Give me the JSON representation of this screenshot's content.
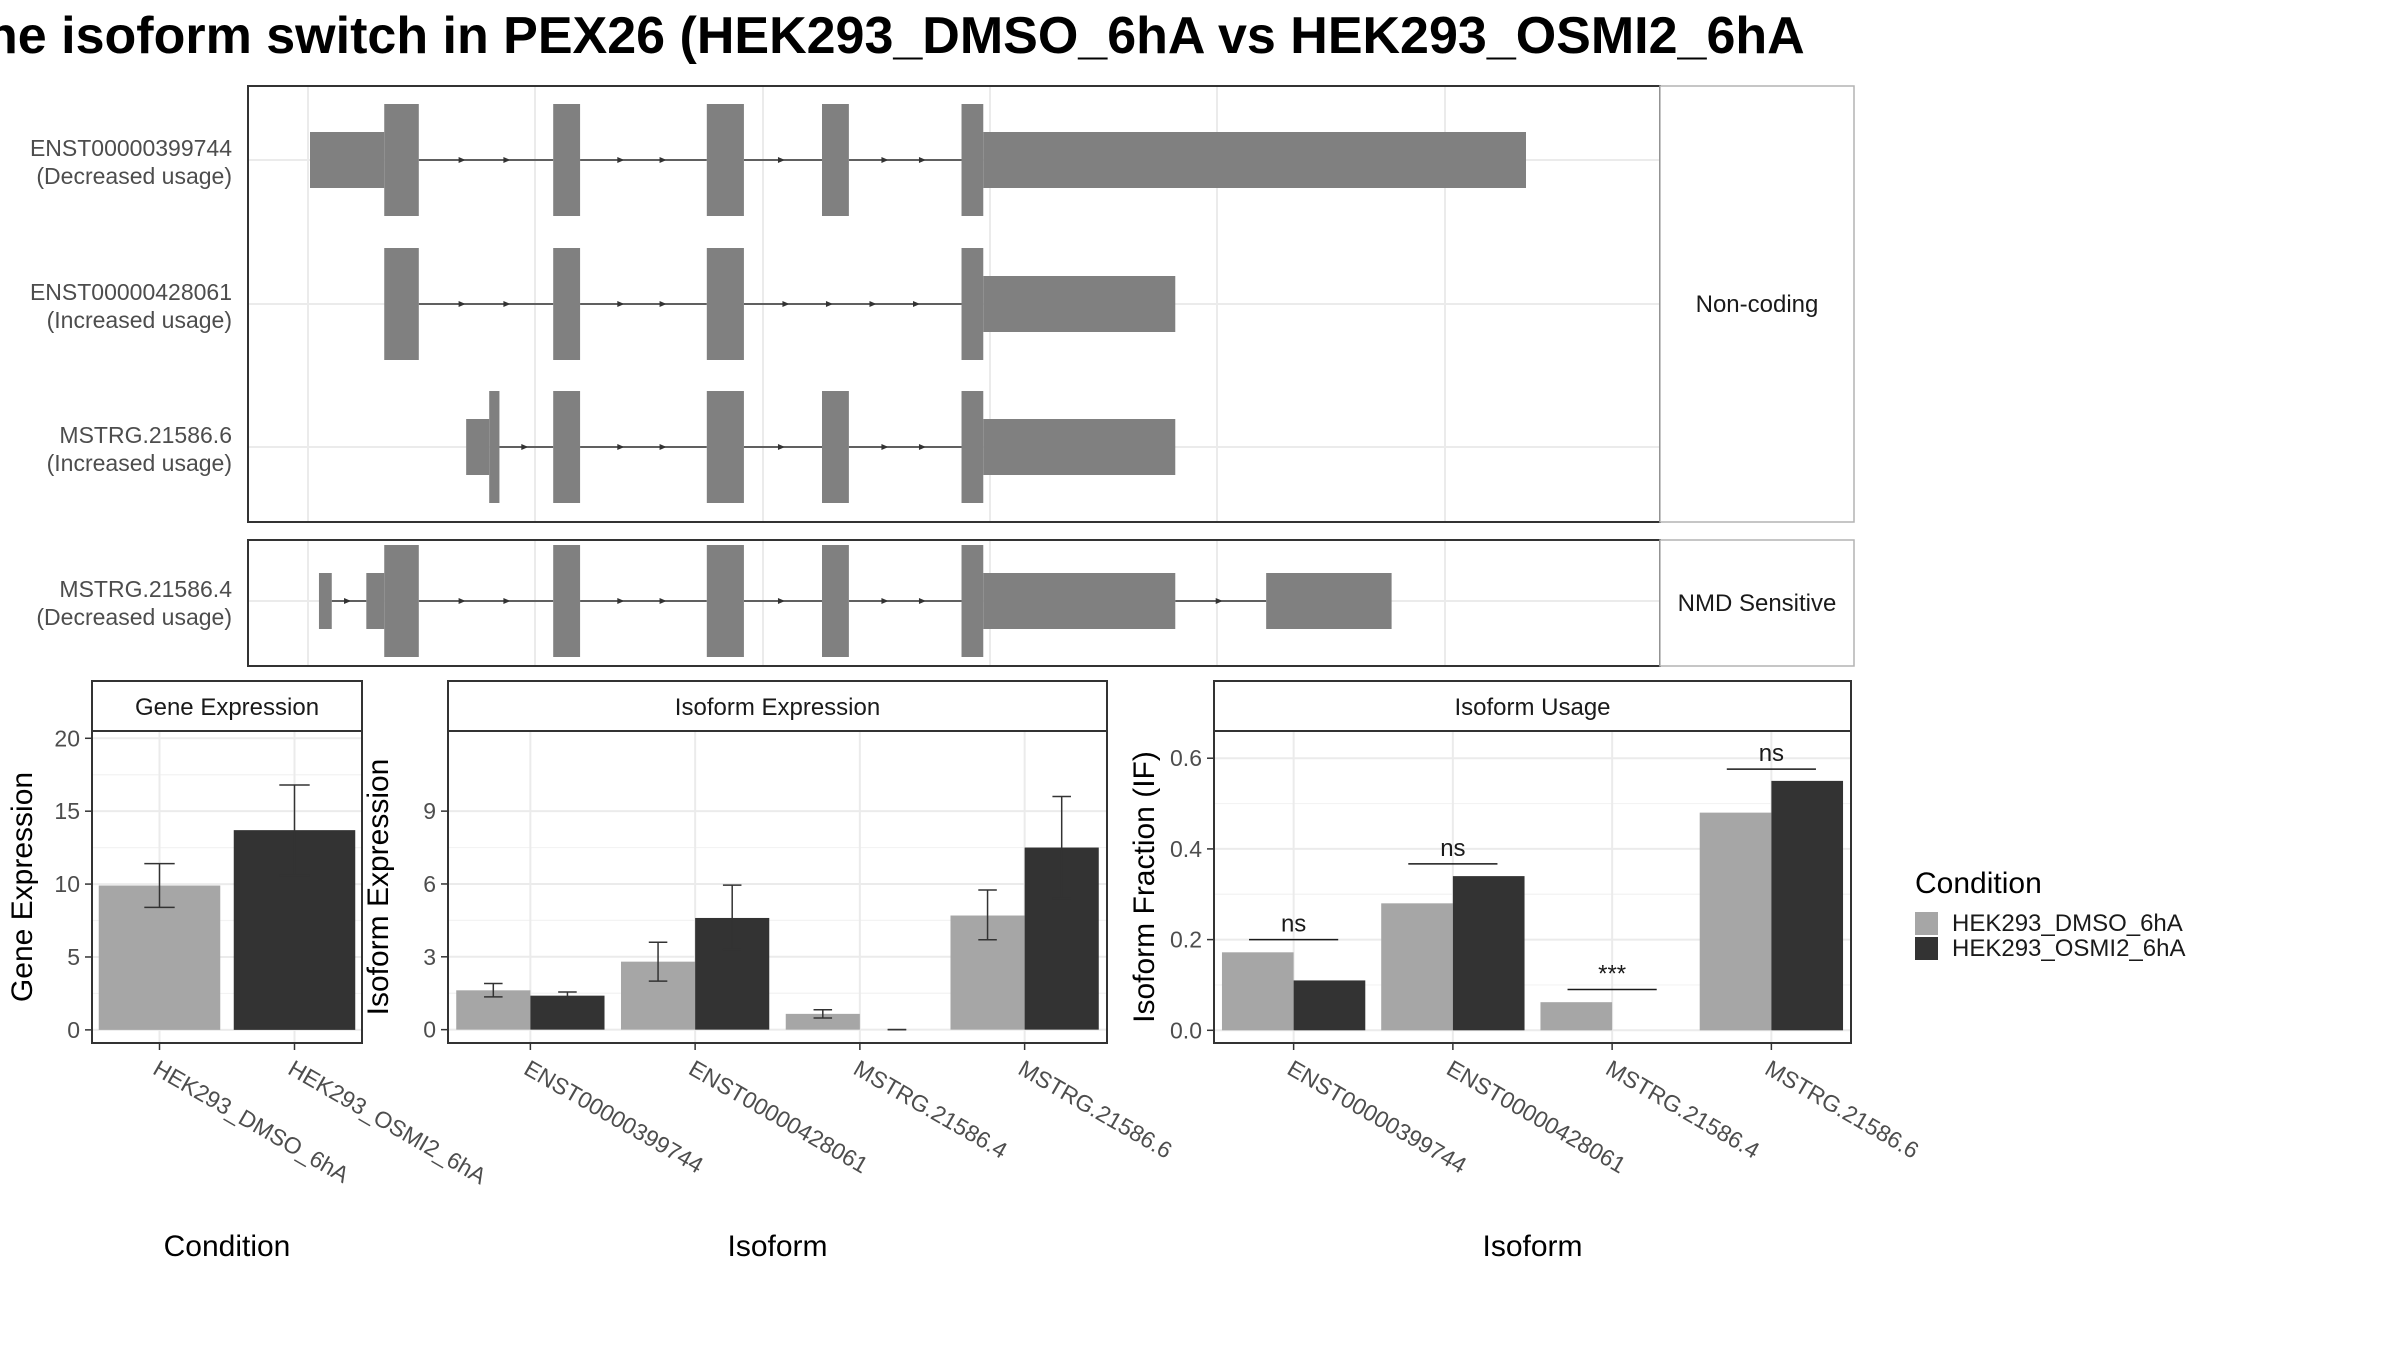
{
  "title": "he isoform switch in PEX26 (HEK293_DMSO_6hA vs HEK293_OSMI2_6hA",
  "colors": {
    "dmso": "#a6a6a6",
    "osmi": "#333333",
    "exon": "#808080",
    "intron": "#333333",
    "panel_border": "#333333",
    "strip_fill": "#ffffff",
    "grid": "#ebebeb"
  },
  "chart_data": [
    {
      "type": "gene-structure",
      "axis_range": [
        0,
        1000
      ],
      "groups": [
        {
          "label": "Non-coding",
          "transcripts": [
            {
              "id": "ENST00000399744",
              "usage_label": "(Decreased usage)",
              "exons": [
                {
                  "start": 0,
                  "end": 58,
                  "kind": "utr"
                },
                {
                  "start": 58,
                  "end": 85,
                  "kind": "cds"
                },
                {
                  "start": 190,
                  "end": 211,
                  "kind": "cds"
                },
                {
                  "start": 310,
                  "end": 339,
                  "kind": "cds"
                },
                {
                  "start": 400,
                  "end": 421,
                  "kind": "cds"
                },
                {
                  "start": 509,
                  "end": 526,
                  "kind": "cds"
                },
                {
                  "start": 526,
                  "end": 950,
                  "kind": "utr"
                }
              ]
            },
            {
              "id": "ENST00000428061",
              "usage_label": "(Increased usage)",
              "exons": [
                {
                  "start": 58,
                  "end": 85,
                  "kind": "cds"
                },
                {
                  "start": 190,
                  "end": 211,
                  "kind": "cds"
                },
                {
                  "start": 310,
                  "end": 339,
                  "kind": "cds"
                },
                {
                  "start": 509,
                  "end": 526,
                  "kind": "cds"
                },
                {
                  "start": 526,
                  "end": 676,
                  "kind": "utr"
                }
              ]
            },
            {
              "id": "MSTRG.21586.6",
              "usage_label": "(Increased usage)",
              "exons": [
                {
                  "start": 122,
                  "end": 140,
                  "kind": "utr"
                },
                {
                  "start": 140,
                  "end": 148,
                  "kind": "cds"
                },
                {
                  "start": 190,
                  "end": 211,
                  "kind": "cds"
                },
                {
                  "start": 310,
                  "end": 339,
                  "kind": "cds"
                },
                {
                  "start": 400,
                  "end": 421,
                  "kind": "cds"
                },
                {
                  "start": 509,
                  "end": 526,
                  "kind": "cds"
                },
                {
                  "start": 526,
                  "end": 676,
                  "kind": "utr"
                }
              ]
            }
          ]
        },
        {
          "label": "NMD Sensitive",
          "transcripts": [
            {
              "id": "MSTRG.21586.4",
              "usage_label": "(Decreased usage)",
              "exons": [
                {
                  "start": 7,
                  "end": 17,
                  "kind": "utr"
                },
                {
                  "start": 44,
                  "end": 58,
                  "kind": "utr"
                },
                {
                  "start": 58,
                  "end": 85,
                  "kind": "cds"
                },
                {
                  "start": 190,
                  "end": 211,
                  "kind": "cds"
                },
                {
                  "start": 310,
                  "end": 339,
                  "kind": "cds"
                },
                {
                  "start": 400,
                  "end": 421,
                  "kind": "cds"
                },
                {
                  "start": 509,
                  "end": 526,
                  "kind": "cds"
                },
                {
                  "start": 526,
                  "end": 676,
                  "kind": "utr"
                },
                {
                  "start": 747,
                  "end": 845,
                  "kind": "utr"
                }
              ]
            }
          ]
        }
      ]
    },
    {
      "type": "bar",
      "title": "Gene Expression",
      "xlabel": "Condition",
      "ylabel": "Gene Expression",
      "ylim": [
        -0.9,
        20.5
      ],
      "yticks": [
        0,
        5,
        10,
        15,
        20
      ],
      "categories": [
        "HEK293_DMSO_6hA",
        "HEK293_OSMI2_6hA"
      ],
      "series": [
        {
          "values": [
            9.9,
            13.7
          ],
          "err_low": [
            8.4,
            10.6
          ],
          "err_high": [
            11.4,
            16.8
          ]
        }
      ]
    },
    {
      "type": "bar",
      "title": "Isoform Expression",
      "xlabel": "Isoform",
      "ylabel": "Isoform Expression",
      "ylim": [
        -0.55,
        12.3
      ],
      "yticks": [
        0,
        3,
        6,
        9
      ],
      "categories": [
        "ENST00000399744",
        "ENST00000428061",
        "MSTRG.21586.4",
        "MSTRG.21586.6"
      ],
      "series": [
        {
          "name": "HEK293_DMSO_6hA",
          "values": [
            1.62,
            2.8,
            0.65,
            4.7
          ],
          "err_low": [
            1.35,
            2.0,
            0.48,
            3.7
          ],
          "err_high": [
            1.9,
            3.6,
            0.82,
            5.75
          ]
        },
        {
          "name": "HEK293_OSMI2_6hA",
          "values": [
            1.4,
            4.6,
            0.0,
            7.5
          ],
          "err_low": [
            1.25,
            3.3,
            0.0,
            5.4
          ],
          "err_high": [
            1.55,
            5.95,
            0.0,
            9.6
          ]
        }
      ]
    },
    {
      "type": "bar",
      "title": "Isoform Usage",
      "xlabel": "Isoform",
      "ylabel": "Isoform Fraction (IF)",
      "ylim": [
        -0.028,
        0.66
      ],
      "yticks": [
        0.0,
        0.2,
        0.4,
        0.6
      ],
      "ytick_labels": [
        "0.0",
        "0.2",
        "0.4",
        "0.6"
      ],
      "categories": [
        "ENST00000399744",
        "ENST00000428061",
        "MSTRG.21586.4",
        "MSTRG.21586.6"
      ],
      "series": [
        {
          "name": "HEK293_DMSO_6hA",
          "values": [
            0.172,
            0.28,
            0.062,
            0.48
          ]
        },
        {
          "name": "HEK293_OSMI2_6hA",
          "values": [
            0.11,
            0.34,
            0.0,
            0.55
          ]
        }
      ],
      "annotations": [
        {
          "category": 0,
          "label": "ns",
          "y": 0.2
        },
        {
          "category": 1,
          "label": "ns",
          "y": 0.367
        },
        {
          "category": 2,
          "label": "***",
          "y": 0.09
        },
        {
          "category": 3,
          "label": "ns",
          "y": 0.576
        }
      ]
    }
  ],
  "legend": {
    "title": "Condition",
    "items": [
      "HEK293_DMSO_6hA",
      "HEK293_OSMI2_6hA"
    ]
  }
}
